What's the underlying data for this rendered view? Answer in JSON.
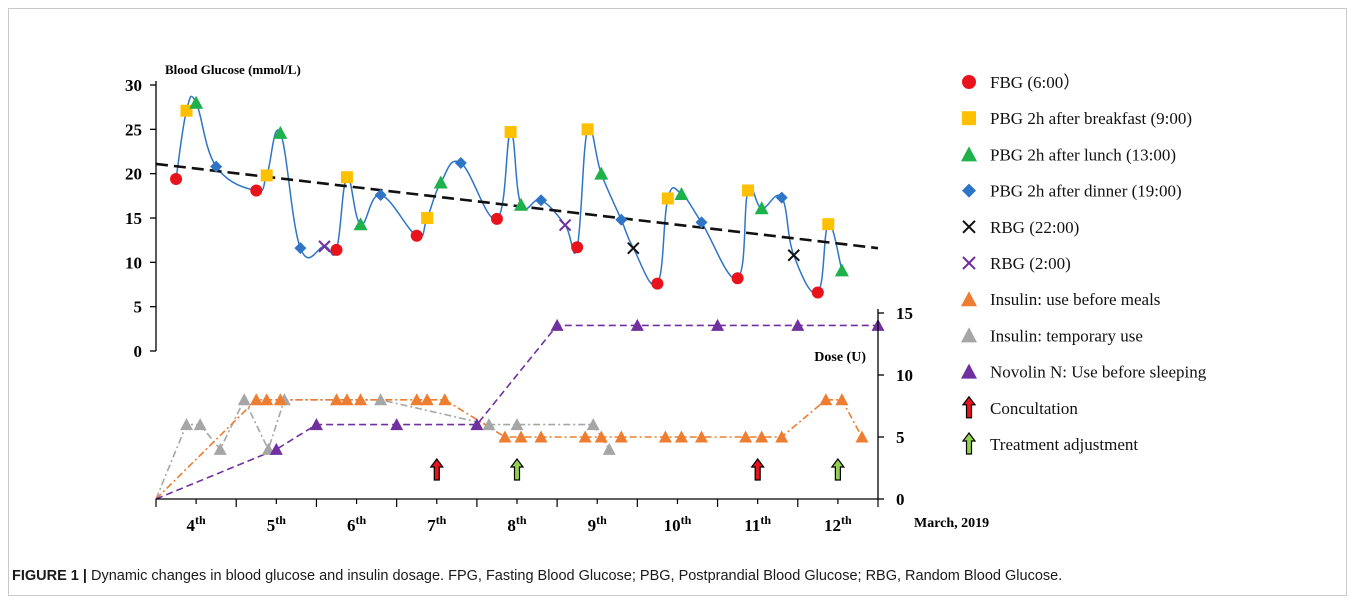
{
  "caption": {
    "label": "FIGURE 1 |",
    "text": "Dynamic changes in blood glucose and insulin dosage. FPG, Fasting Blood Glucose; PBG, Postprandial Blood Glucose; RBG, Random Blood Glucose."
  },
  "chart_data": {
    "type": "line",
    "y_axis_label": "Blood Glucose (mmol/L)",
    "y2_axis_label": "Dose (U)",
    "x_axis_caption": "March, 2019",
    "glucose_ylim": [
      0,
      30
    ],
    "glucose_ticks": [
      0,
      5,
      10,
      15,
      20,
      25,
      30
    ],
    "dose_ylim": [
      0,
      15
    ],
    "dose_ticks": [
      0,
      5,
      10,
      15
    ],
    "x_range": [
      3.5,
      12.5
    ],
    "day_labels": [
      {
        "x": 4,
        "day": "4",
        "sup": "th"
      },
      {
        "x": 5,
        "day": "5",
        "sup": "th"
      },
      {
        "x": 6,
        "day": "6",
        "sup": "th"
      },
      {
        "x": 7,
        "day": "7",
        "sup": "th"
      },
      {
        "x": 8,
        "day": "8",
        "sup": "th"
      },
      {
        "x": 9,
        "day": "9",
        "sup": "th"
      },
      {
        "x": 10,
        "day": "10",
        "sup": "th"
      },
      {
        "x": 11,
        "day": "11",
        "sup": "th"
      },
      {
        "x": 12,
        "day": "12",
        "sup": "th"
      }
    ],
    "colors": {
      "fbg": "#e8131b",
      "pbg_breakfast": "#ffc000",
      "pbg_lunch": "#1fb14b",
      "pbg_dinner": "#2e75c6",
      "rbg_22": "#111111",
      "rbg_2": "#7030a0",
      "glucose_line": "#2e75c6",
      "trend": "#111111",
      "insulin_meals": "#ed7d31",
      "insulin_temp": "#a6a6a6",
      "novolin": "#7030a0",
      "arrow_red": "#e8131b",
      "arrow_green": "#92d050"
    },
    "legend": [
      {
        "key": "fbg",
        "marker": "circle",
        "label": "FBG (6:00）"
      },
      {
        "key": "pbg_breakfast",
        "marker": "square",
        "label": "PBG 2h after breakfast (9:00)"
      },
      {
        "key": "pbg_lunch",
        "marker": "triangle",
        "label": "PBG 2h after lunch (13:00)"
      },
      {
        "key": "pbg_dinner",
        "marker": "diamond",
        "label": "PBG 2h after dinner (19:00)"
      },
      {
        "key": "rbg_22",
        "marker": "x",
        "label": "RBG (22:00)"
      },
      {
        "key": "rbg_2",
        "marker": "x",
        "label": "RBG (2:00)"
      },
      {
        "key": "insulin_meals",
        "marker": "triangle",
        "label": "Insulin: use before meals"
      },
      {
        "key": "insulin_temp",
        "marker": "triangle",
        "label": "Insulin: temporary use"
      },
      {
        "key": "novolin",
        "marker": "triangle",
        "label": "Novolin N: Use before sleeping"
      },
      {
        "key": "arrow_red",
        "marker": "arrow",
        "label": "Concultation"
      },
      {
        "key": "arrow_green",
        "marker": "arrow",
        "label": "Treatment adjustment"
      }
    ],
    "glucose_series": [
      {
        "key": "fbg",
        "x": 3.75,
        "y": 19.4
      },
      {
        "key": "pbg_breakfast",
        "x": 3.88,
        "y": 27.1
      },
      {
        "key": "pbg_lunch",
        "x": 4.0,
        "y": 28.0
      },
      {
        "key": "pbg_dinner",
        "x": 4.25,
        "y": 20.8
      },
      {
        "key": "fbg",
        "x": 4.75,
        "y": 18.1
      },
      {
        "key": "pbg_breakfast",
        "x": 4.88,
        "y": 19.8
      },
      {
        "key": "pbg_lunch",
        "x": 5.05,
        "y": 24.6
      },
      {
        "key": "pbg_dinner",
        "x": 5.3,
        "y": 11.6
      },
      {
        "key": "rbg_2",
        "x": 5.6,
        "y": 11.8
      },
      {
        "key": "fbg",
        "x": 5.75,
        "y": 11.4
      },
      {
        "key": "pbg_breakfast",
        "x": 5.88,
        "y": 19.6
      },
      {
        "key": "pbg_lunch",
        "x": 6.05,
        "y": 14.3
      },
      {
        "key": "pbg_dinner",
        "x": 6.3,
        "y": 17.6
      },
      {
        "key": "fbg",
        "x": 6.75,
        "y": 13.0
      },
      {
        "key": "pbg_breakfast",
        "x": 6.88,
        "y": 15.0
      },
      {
        "key": "pbg_lunch",
        "x": 7.05,
        "y": 19.0
      },
      {
        "key": "pbg_dinner",
        "x": 7.3,
        "y": 21.2
      },
      {
        "key": "fbg",
        "x": 7.75,
        "y": 14.9
      },
      {
        "key": "pbg_breakfast",
        "x": 7.92,
        "y": 24.7
      },
      {
        "key": "pbg_lunch",
        "x": 8.05,
        "y": 16.5
      },
      {
        "key": "pbg_dinner",
        "x": 8.3,
        "y": 17.0
      },
      {
        "key": "rbg_2",
        "x": 8.6,
        "y": 14.2
      },
      {
        "key": "fbg",
        "x": 8.75,
        "y": 11.7
      },
      {
        "key": "pbg_breakfast",
        "x": 8.88,
        "y": 25.0
      },
      {
        "key": "pbg_lunch",
        "x": 9.05,
        "y": 20.0
      },
      {
        "key": "pbg_dinner",
        "x": 9.3,
        "y": 14.8
      },
      {
        "key": "rbg_22",
        "x": 9.45,
        "y": 11.6
      },
      {
        "key": "fbg",
        "x": 9.75,
        "y": 7.6
      },
      {
        "key": "pbg_breakfast",
        "x": 9.88,
        "y": 17.2
      },
      {
        "key": "pbg_lunch",
        "x": 10.05,
        "y": 17.7
      },
      {
        "key": "pbg_dinner",
        "x": 10.3,
        "y": 14.5
      },
      {
        "key": "fbg",
        "x": 10.75,
        "y": 8.2
      },
      {
        "key": "pbg_breakfast",
        "x": 10.88,
        "y": 18.1
      },
      {
        "key": "pbg_lunch",
        "x": 11.05,
        "y": 16.1
      },
      {
        "key": "pbg_dinner",
        "x": 11.3,
        "y": 17.3
      },
      {
        "key": "rbg_22",
        "x": 11.45,
        "y": 10.8
      },
      {
        "key": "fbg",
        "x": 11.75,
        "y": 6.6
      },
      {
        "key": "pbg_breakfast",
        "x": 11.88,
        "y": 14.3
      },
      {
        "key": "pbg_lunch",
        "x": 12.05,
        "y": 9.1
      }
    ],
    "glucose_trend": {
      "start": {
        "x": 3.5,
        "y": 21.1
      },
      "end": {
        "x": 12.5,
        "y": 11.6
      }
    },
    "dose_series": [
      {
        "key": "insulin_meals",
        "points": [
          {
            "x": 3.5,
            "y": 0
          },
          {
            "x": 4.75,
            "y": 8
          },
          {
            "x": 4.88,
            "y": 8
          },
          {
            "x": 5.05,
            "y": 8
          },
          {
            "x": 5.75,
            "y": 8
          },
          {
            "x": 5.88,
            "y": 8
          },
          {
            "x": 6.05,
            "y": 8
          },
          {
            "x": 6.75,
            "y": 8
          },
          {
            "x": 6.88,
            "y": 8
          },
          {
            "x": 7.1,
            "y": 8
          },
          {
            "x": 7.85,
            "y": 5
          },
          {
            "x": 8.05,
            "y": 5
          },
          {
            "x": 8.3,
            "y": 5
          },
          {
            "x": 8.85,
            "y": 5
          },
          {
            "x": 9.05,
            "y": 5
          },
          {
            "x": 9.3,
            "y": 5
          },
          {
            "x": 9.85,
            "y": 5
          },
          {
            "x": 10.05,
            "y": 5
          },
          {
            "x": 10.3,
            "y": 5
          },
          {
            "x": 10.85,
            "y": 5
          },
          {
            "x": 11.05,
            "y": 5
          },
          {
            "x": 11.3,
            "y": 5
          },
          {
            "x": 11.85,
            "y": 8
          },
          {
            "x": 12.05,
            "y": 8
          },
          {
            "x": 12.3,
            "y": 5
          }
        ]
      },
      {
        "key": "insulin_temp",
        "points": [
          {
            "x": 3.5,
            "y": 0
          },
          {
            "x": 3.88,
            "y": 6
          },
          {
            "x": 4.05,
            "y": 6
          },
          {
            "x": 4.3,
            "y": 4
          },
          {
            "x": 4.6,
            "y": 8
          },
          {
            "x": 4.9,
            "y": 4
          },
          {
            "x": 5.1,
            "y": 8
          },
          {
            "x": 6.3,
            "y": 8
          },
          {
            "x": 7.65,
            "y": 6
          },
          {
            "x": 8.0,
            "y": 6
          },
          {
            "x": 8.95,
            "y": 6
          },
          {
            "x": 9.15,
            "y": 4
          }
        ]
      },
      {
        "key": "novolin",
        "points": [
          {
            "x": 3.5,
            "y": 0
          },
          {
            "x": 5.0,
            "y": 4
          },
          {
            "x": 5.5,
            "y": 6
          },
          {
            "x": 6.5,
            "y": 6
          },
          {
            "x": 7.5,
            "y": 6
          },
          {
            "x": 8.5,
            "y": 14
          },
          {
            "x": 9.5,
            "y": 14
          },
          {
            "x": 10.5,
            "y": 14
          },
          {
            "x": 11.5,
            "y": 14
          },
          {
            "x": 12.5,
            "y": 14
          }
        ]
      }
    ],
    "arrows": [
      {
        "key": "arrow_red",
        "x": 7.0
      },
      {
        "key": "arrow_green",
        "x": 8.0
      },
      {
        "key": "arrow_red",
        "x": 11.0
      },
      {
        "key": "arrow_green",
        "x": 12.0
      }
    ]
  }
}
